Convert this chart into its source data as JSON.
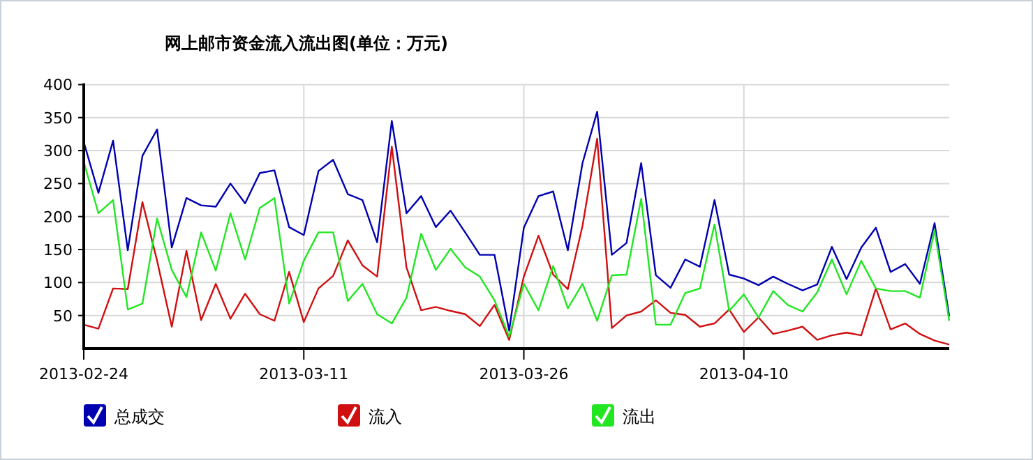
{
  "chart_data": {
    "type": "line",
    "title": "网上邮市资金流入流出图(单位：万元)",
    "x": [
      "2013-02-24",
      "2013-02-25",
      "2013-02-26",
      "2013-02-27",
      "2013-02-28",
      "2013-03-01",
      "2013-03-02",
      "2013-03-03",
      "2013-03-04",
      "2013-03-05",
      "2013-03-06",
      "2013-03-07",
      "2013-03-08",
      "2013-03-09",
      "2013-03-10",
      "2013-03-11",
      "2013-03-12",
      "2013-03-13",
      "2013-03-14",
      "2013-03-15",
      "2013-03-16",
      "2013-03-17",
      "2013-03-18",
      "2013-03-19",
      "2013-03-20",
      "2013-03-21",
      "2013-03-22",
      "2013-03-23",
      "2013-03-24",
      "2013-03-25",
      "2013-03-26",
      "2013-03-27",
      "2013-03-28",
      "2013-03-29",
      "2013-03-30",
      "2013-03-31",
      "2013-04-01",
      "2013-04-02",
      "2013-04-03",
      "2013-04-04",
      "2013-04-05",
      "2013-04-06",
      "2013-04-07",
      "2013-04-08",
      "2013-04-09",
      "2013-04-10",
      "2013-04-11",
      "2013-04-12",
      "2013-04-13",
      "2013-04-14",
      "2013-04-15",
      "2013-04-16",
      "2013-04-17",
      "2013-04-18",
      "2013-04-19",
      "2013-04-20",
      "2013-04-21",
      "2013-04-22",
      "2013-04-23",
      "2013-04-24"
    ],
    "series": [
      {
        "name": "总成交",
        "color": "#0000b0",
        "values": [
          313,
          236,
          315,
          149,
          292,
          332,
          153,
          228,
          217,
          215,
          250,
          220,
          266,
          270,
          184,
          172,
          269,
          286,
          234,
          225,
          161,
          345,
          205,
          231,
          184,
          209,
          176,
          142,
          142,
          27,
          183,
          231,
          238,
          149,
          281,
          359,
          142,
          160,
          281,
          111,
          92,
          135,
          124,
          225,
          112,
          106,
          96,
          109,
          98,
          88,
          97,
          154,
          105,
          153,
          183,
          116,
          128,
          98,
          190,
          49
        ]
      },
      {
        "name": "流入",
        "color": "#d01010",
        "values": [
          36,
          30,
          91,
          90,
          222,
          133,
          33,
          148,
          43,
          98,
          45,
          83,
          52,
          42,
          116,
          40,
          91,
          110,
          164,
          126,
          109,
          306,
          123,
          58,
          63,
          57,
          52,
          34,
          66,
          13,
          109,
          171,
          112,
          90,
          186,
          318,
          31,
          50,
          56,
          73,
          54,
          51,
          33,
          38,
          59,
          25,
          47,
          22,
          27,
          33,
          13,
          20,
          24,
          20,
          91,
          29,
          38,
          22,
          12,
          6
        ]
      },
      {
        "name": "流出",
        "color": "#22e622",
        "values": [
          283,
          205,
          225,
          59,
          68,
          197,
          119,
          78,
          176,
          118,
          205,
          135,
          213,
          228,
          68,
          133,
          176,
          176,
          72,
          98,
          52,
          38,
          77,
          174,
          119,
          151,
          123,
          109,
          73,
          18,
          98,
          58,
          125,
          61,
          98,
          42,
          111,
          112,
          227,
          36,
          36,
          84,
          91,
          188,
          57,
          82,
          47,
          87,
          66,
          56,
          85,
          135,
          82,
          133,
          91,
          87,
          87,
          77,
          179,
          42
        ]
      }
    ],
    "xlim": [
      "2013-02-24",
      "2013-04-24"
    ],
    "xticks": [
      "2013-02-24",
      "2013-03-11",
      "2013-03-26",
      "2013-04-10"
    ],
    "ylim": [
      0,
      400
    ],
    "yticks": [
      50,
      100,
      150,
      200,
      250,
      300,
      350,
      400
    ],
    "grid": true,
    "legend": "bottom",
    "marker": "none",
    "line_style": "solid"
  }
}
